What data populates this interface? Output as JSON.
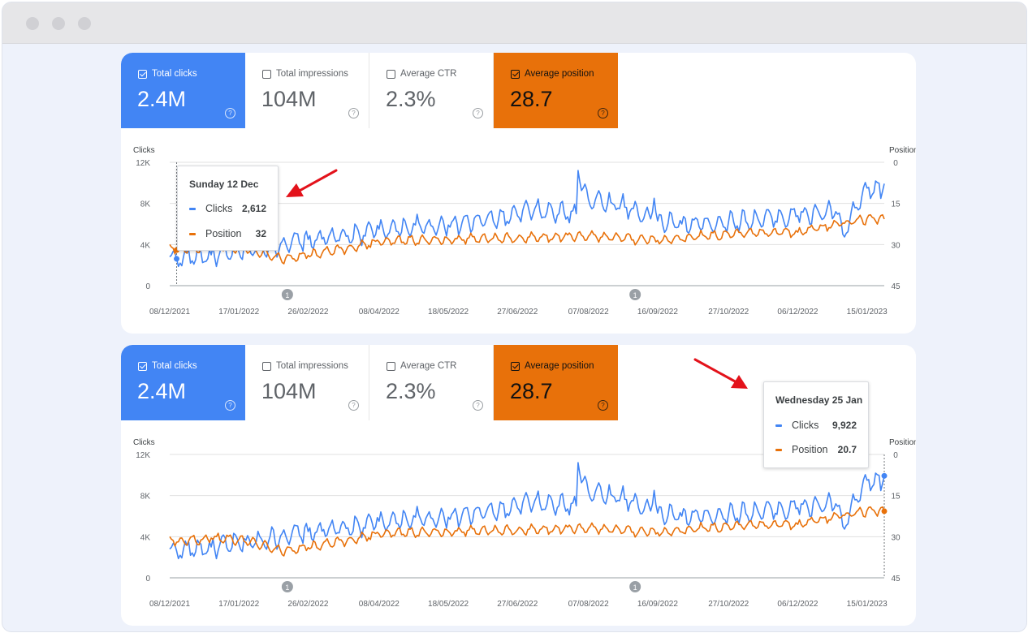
{
  "window": {
    "dots": [
      "#d0d0d4",
      "#d0d0d4",
      "#d0d0d4"
    ]
  },
  "colors": {
    "clicks": "#4285f4",
    "position": "#e8710a",
    "arrow": "#e3121b"
  },
  "panels": [
    {
      "metrics": {
        "clicks": {
          "label": "Total clicks",
          "value": "2.4M",
          "checked": true
        },
        "impressions": {
          "label": "Total impressions",
          "value": "104M",
          "checked": false
        },
        "ctr": {
          "label": "Average CTR",
          "value": "2.3%",
          "checked": false
        },
        "position": {
          "label": "Average position",
          "value": "28.7",
          "checked": true
        }
      },
      "tooltip": {
        "date": "Sunday 12 Dec",
        "clicks_label": "Clicks",
        "clicks_value": "2,612",
        "position_label": "Position",
        "position_value": "32"
      }
    },
    {
      "metrics": {
        "clicks": {
          "label": "Total clicks",
          "value": "2.4M",
          "checked": true
        },
        "impressions": {
          "label": "Total impressions",
          "value": "104M",
          "checked": false
        },
        "ctr": {
          "label": "Average CTR",
          "value": "2.3%",
          "checked": false
        },
        "position": {
          "label": "Average position",
          "value": "28.7",
          "checked": true
        }
      },
      "tooltip": {
        "date": "Wednesday 25 Jan",
        "clicks_label": "Clicks",
        "clicks_value": "9,922",
        "position_label": "Position",
        "position_value": "20.7"
      }
    }
  ],
  "chart_data": {
    "type": "line",
    "y_left_label": "Clicks",
    "y_right_label": "Position",
    "y_left_ticks": [
      "12K",
      "8K",
      "4K",
      "0"
    ],
    "y_left_range": [
      0,
      12000
    ],
    "y_right_ticks": [
      "0",
      "15",
      "30",
      "45"
    ],
    "y_right_range": [
      0,
      45
    ],
    "y_right_inverted": true,
    "x_ticks": [
      "08/12/2021",
      "17/01/2022",
      "26/02/2022",
      "08/04/2022",
      "18/05/2022",
      "27/06/2022",
      "07/08/2022",
      "16/09/2022",
      "27/10/2022",
      "06/12/2022",
      "15/01/2023"
    ],
    "x_range": [
      "08/12/2021",
      "25/01/2023"
    ],
    "grid": "horizontal",
    "annotations": [
      {
        "date": "14/02/2022",
        "label": "1"
      },
      {
        "date": "03/09/2022",
        "label": "1"
      }
    ],
    "series": [
      {
        "name": "Clicks",
        "axis": "left",
        "dates": [
          "08/12/2021",
          "12/12/2021",
          "01/01/2022",
          "17/01/2022",
          "26/02/2022",
          "20/03/2022",
          "08/04/2022",
          "18/05/2022",
          "27/06/2022",
          "30/06/2022",
          "31/07/2022",
          "01/08/2022",
          "07/08/2022",
          "20/08/2022",
          "02/09/2022",
          "12/09/2022",
          "14/09/2022",
          "16/09/2022",
          "30/09/2022",
          "27/10/2022",
          "06/12/2022",
          "28/12/2022",
          "01/01/2023",
          "15/01/2023",
          "24/01/2023",
          "25/01/2023"
        ],
        "values": [
          2800,
          2612,
          3000,
          3300,
          4500,
          4800,
          5500,
          5900,
          6800,
          7300,
          7000,
          11200,
          8400,
          8100,
          7500,
          6500,
          8500,
          6300,
          6000,
          6200,
          6800,
          7200,
          5000,
          9500,
          9200,
          9922
        ]
      },
      {
        "name": "Position",
        "axis": "right",
        "dates": [
          "08/12/2021",
          "12/12/2021",
          "01/01/2022",
          "17/01/2022",
          "10/02/2022",
          "26/02/2022",
          "08/04/2022",
          "18/05/2022",
          "27/06/2022",
          "07/08/2022",
          "16/09/2022",
          "27/10/2022",
          "06/12/2022",
          "15/01/2023",
          "25/01/2023"
        ],
        "values": [
          30,
          32,
          30.5,
          31,
          35,
          34,
          29,
          28,
          27.5,
          27,
          28.5,
          26,
          25.5,
          20.5,
          20.7
        ]
      }
    ]
  }
}
